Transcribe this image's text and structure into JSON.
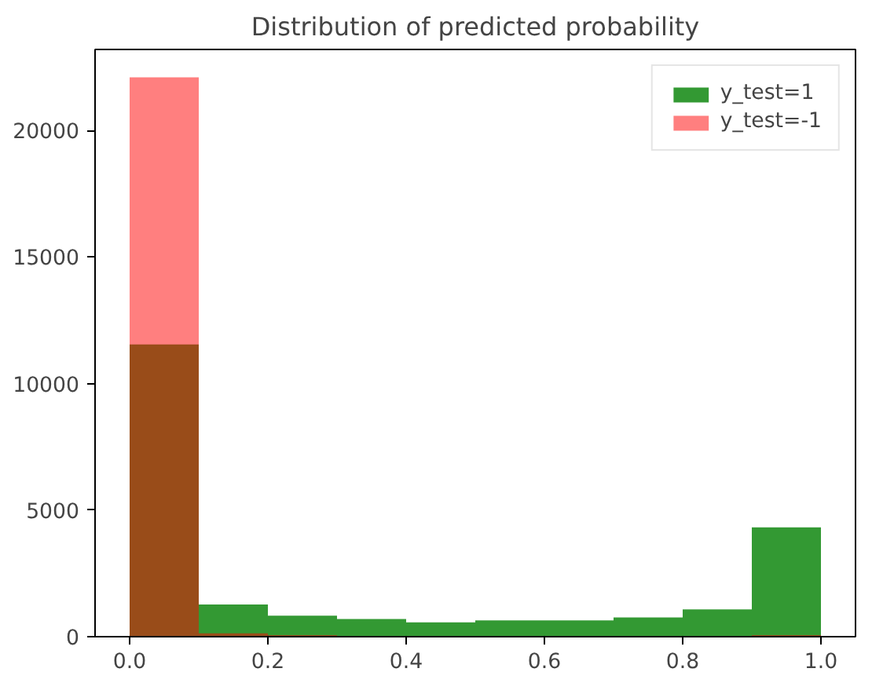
{
  "chart_data": {
    "type": "histogram",
    "title": "Distribution of predicted probability",
    "bins": [
      0,
      0.1,
      0.2,
      0.3,
      0.4,
      0.5,
      0.6,
      0.7,
      0.8,
      0.9,
      1.0
    ],
    "series": [
      {
        "name": "y_test=1",
        "color": "#008000",
        "values": [
          11550,
          1270,
          830,
          700,
          570,
          640,
          640,
          760,
          1080,
          4320
        ]
      },
      {
        "name": "y_test=-1",
        "color": "#ff0000",
        "values": [
          22100,
          130,
          60,
          30,
          20,
          20,
          20,
          20,
          30,
          60
        ]
      }
    ],
    "xlim": [
      -0.05,
      1.05
    ],
    "xticks": [
      {
        "value": 0,
        "label": "0.0"
      },
      {
        "value": 0.2,
        "label": "0.2"
      },
      {
        "value": 0.4,
        "label": "0.4"
      },
      {
        "value": 0.6,
        "label": "0.6"
      },
      {
        "value": 0.8,
        "label": "0.8"
      },
      {
        "value": 1.0,
        "label": "1.0"
      }
    ],
    "ylim": [
      0,
      23205
    ],
    "yticks": [
      0,
      5000,
      10000,
      15000,
      20000
    ],
    "grid": false,
    "legend": "top right"
  }
}
